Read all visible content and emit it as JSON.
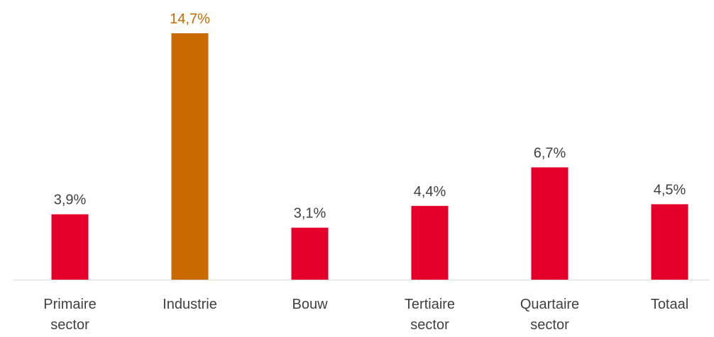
{
  "chart_data": {
    "type": "bar",
    "categories": [
      "Primaire sector",
      "Industrie",
      "Bouw",
      "Tertiaire sector",
      "Quartaire sector",
      "Totaal"
    ],
    "values": [
      3.9,
      14.7,
      3.1,
      4.4,
      6.7,
      4.5
    ],
    "value_labels": [
      "3,9%",
      "14,7%",
      "3,1%",
      "4,4%",
      "6,7%",
      "4,5%"
    ],
    "colors": [
      "#e4002b",
      "#c96a00",
      "#e4002b",
      "#e4002b",
      "#e4002b",
      "#e4002b"
    ],
    "label_colors": [
      "#404040",
      "#c96a00",
      "#404040",
      "#404040",
      "#404040",
      "#404040"
    ]
  }
}
